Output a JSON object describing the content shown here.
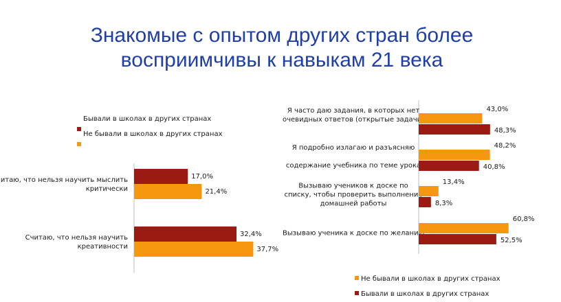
{
  "title": {
    "line1": "Знакомые с опытом других стран более",
    "line2": "восприимчивы к навыкам 21 века"
  },
  "colors": {
    "dark_red": "#9b1a12",
    "orange": "#f5980f"
  },
  "chart_data": [
    {
      "type": "bar",
      "orientation": "horizontal",
      "categories": [
        [
          "Считаю, что нельзя научить мыслить",
          "критически"
        ],
        [
          "Считаю, что нельзя научить",
          "креативности"
        ]
      ],
      "series": [
        {
          "name": "Бывали в школах в других странах",
          "color": "#9b1a12",
          "values": [
            17.0,
            32.4
          ],
          "labels": [
            "17,0%",
            "32,4%"
          ]
        },
        {
          "name": "Не бывали в школах в других странах",
          "color": "#f5980f",
          "values": [
            21.4,
            37.7
          ],
          "labels": [
            "21,4%",
            "37,7%"
          ]
        }
      ],
      "legend_position": "top-left",
      "xlim": [
        0,
        100
      ]
    },
    {
      "type": "bar",
      "orientation": "horizontal",
      "categories": [
        [
          "Я часто даю задания, в которых нет",
          "очевидных ответов (открытые задачи)"
        ],
        [
          "Я подробно излагаю и разъясняю",
          "содержание учебника по теме урока"
        ],
        [
          "Вызываю учеников к доске по",
          "списку, чтобы проверить выполнение",
          "домашней работы"
        ],
        [
          "Вызываю ученика к доске по желанию"
        ]
      ],
      "series": [
        {
          "name": "Не бывали в школах в других странах",
          "color": "#f5980f",
          "values": [
            43.0,
            48.2,
            13.4,
            60.8
          ],
          "labels": [
            "43,0%",
            "48,2%",
            "13,4%",
            "60,8%"
          ]
        },
        {
          "name": "Бывали в школах в других странах",
          "color": "#9b1a12",
          "values": [
            48.3,
            40.8,
            8.3,
            52.5
          ],
          "labels": [
            "48,3%",
            "40,8%",
            "8,3%",
            "52,5%"
          ]
        }
      ],
      "legend_position": "bottom",
      "xlim": [
        0,
        100
      ]
    }
  ]
}
